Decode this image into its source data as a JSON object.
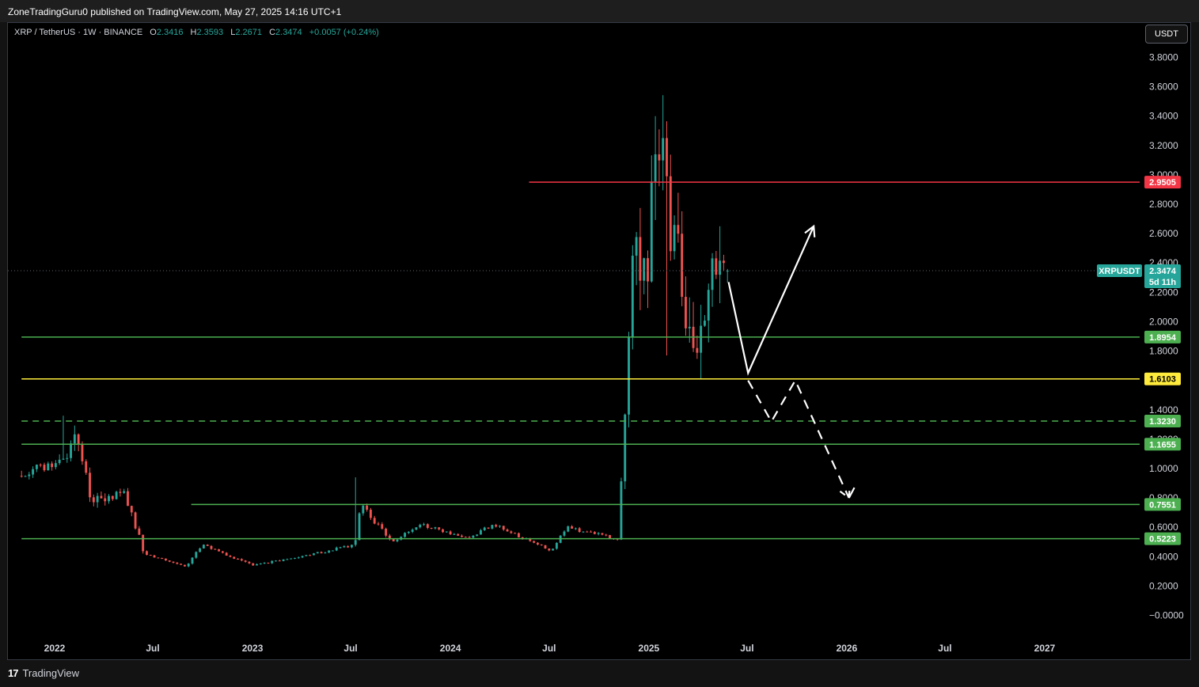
{
  "header": {
    "published": "ZoneTradingGuru0 published on TradingView.com, May 27, 2025 14:16 UTC+1"
  },
  "legend": {
    "symbol": "XRP / TetherUS · 1W · BINANCE",
    "open_label": "O",
    "open": "2.3416",
    "high_label": "H",
    "high": "2.3593",
    "low_label": "L",
    "low": "2.2671",
    "close_label": "C",
    "close": "2.3474",
    "change": "+0.0057 (+0.24%)"
  },
  "currency_button": "USDT",
  "footer": {
    "brand": "TradingView",
    "brand_icon": "tradingview-logo-icon"
  },
  "colors": {
    "up": "#26a69a",
    "down": "#ef5350",
    "support": "#4caf50",
    "resistance": "#f23645",
    "pivot": "#ffeb3b",
    "arrow": "#ffffff"
  },
  "chart_data": {
    "type": "candlestick",
    "symbol": "XRPUSDT",
    "interval": "1W",
    "ylim": [
      -0.1,
      3.95
    ],
    "y_ticks": [
      "3.8000",
      "3.6000",
      "3.4000",
      "3.2000",
      "3.0000",
      "2.8000",
      "2.6000",
      "2.4000",
      "2.2000",
      "2.0000",
      "1.8000",
      "1.6000",
      "1.4000",
      "1.2000",
      "1.0000",
      "0.8000",
      "0.6000",
      "0.4000",
      "0.2000",
      "−0.0000"
    ],
    "x_ticks": [
      "2022",
      "Jul",
      "2023",
      "Jul",
      "2024",
      "Jul",
      "2025",
      "Jul",
      "2026",
      "Jul",
      "2027"
    ],
    "x_tick_dates": [
      "2022-01-01",
      "2022-07-01",
      "2023-01-01",
      "2023-07-01",
      "2024-01-01",
      "2024-07-01",
      "2025-01-01",
      "2025-07-01",
      "2026-01-01",
      "2026-07-01",
      "2027-01-01"
    ],
    "price_segments": [
      {
        "from": "2021-11-01",
        "to": "2022-01-15",
        "start": 0.95,
        "end": 1.05,
        "vol": 0.05
      },
      {
        "from": "2022-01-15",
        "to": "2022-02-10",
        "start": 1.05,
        "end": 1.3,
        "vol": 0.06
      },
      {
        "from": "2022-02-10",
        "to": "2022-03-10",
        "start": 1.3,
        "end": 0.8,
        "vol": 0.06
      },
      {
        "from": "2022-03-10",
        "to": "2022-04-10",
        "start": 0.8,
        "end": 0.78,
        "vol": 0.06
      },
      {
        "from": "2022-04-10",
        "to": "2022-05-10",
        "start": 0.78,
        "end": 0.85,
        "vol": 0.05
      },
      {
        "from": "2022-05-10",
        "to": "2022-06-15",
        "start": 0.85,
        "end": 0.42,
        "vol": 0.05
      },
      {
        "from": "2022-06-15",
        "to": "2022-09-01",
        "start": 0.42,
        "end": 0.33,
        "vol": 0.02
      },
      {
        "from": "2022-09-01",
        "to": "2022-10-01",
        "start": 0.33,
        "end": 0.48,
        "vol": 0.03
      },
      {
        "from": "2022-10-01",
        "to": "2023-01-01",
        "start": 0.48,
        "end": 0.34,
        "vol": 0.02
      },
      {
        "from": "2023-01-01",
        "to": "2023-04-01",
        "start": 0.34,
        "end": 0.4,
        "vol": 0.02
      },
      {
        "from": "2023-04-01",
        "to": "2023-07-08",
        "start": 0.4,
        "end": 0.48,
        "vol": 0.02
      },
      {
        "from": "2023-07-08",
        "to": "2023-07-20",
        "start": 0.48,
        "end": 0.75,
        "vol": 0.03
      },
      {
        "from": "2023-07-20",
        "to": "2023-09-15",
        "start": 0.75,
        "end": 0.5,
        "vol": 0.03
      },
      {
        "from": "2023-09-15",
        "to": "2023-11-10",
        "start": 0.5,
        "end": 0.62,
        "vol": 0.02
      },
      {
        "from": "2023-11-10",
        "to": "2024-02-01",
        "start": 0.62,
        "end": 0.52,
        "vol": 0.02
      },
      {
        "from": "2024-02-01",
        "to": "2024-03-20",
        "start": 0.52,
        "end": 0.62,
        "vol": 0.02
      },
      {
        "from": "2024-03-20",
        "to": "2024-07-05",
        "start": 0.62,
        "end": 0.44,
        "vol": 0.02
      },
      {
        "from": "2024-07-05",
        "to": "2024-08-01",
        "start": 0.44,
        "end": 0.6,
        "vol": 0.02
      },
      {
        "from": "2024-08-01",
        "to": "2024-11-05",
        "start": 0.6,
        "end": 0.52,
        "vol": 0.02
      },
      {
        "from": "2024-11-05",
        "to": "2024-12-02",
        "start": 0.52,
        "end": 2.4,
        "vol": 0.06
      },
      {
        "from": "2024-12-02",
        "to": "2024-12-25",
        "start": 2.4,
        "end": 2.2,
        "vol": 0.12
      },
      {
        "from": "2024-12-25",
        "to": "2025-01-18",
        "start": 2.2,
        "end": 3.1,
        "vol": 0.12
      },
      {
        "from": "2025-01-18",
        "to": "2025-03-01",
        "start": 3.1,
        "end": 2.2,
        "vol": 0.14
      },
      {
        "from": "2025-03-01",
        "to": "2025-04-08",
        "start": 2.2,
        "end": 1.95,
        "vol": 0.12
      },
      {
        "from": "2025-04-08",
        "to": "2025-05-12",
        "start": 1.95,
        "end": 2.45,
        "vol": 0.1
      },
      {
        "from": "2025-05-12",
        "to": "2025-05-27",
        "start": 2.45,
        "end": 2.35,
        "vol": 0.05
      }
    ],
    "spikes": [
      {
        "date": "2022-01-20",
        "high": 1.36
      },
      {
        "date": "2023-07-13",
        "high": 0.94
      },
      {
        "date": "2025-01-16",
        "high": 3.4
      },
      {
        "date": "2025-02-03",
        "low": 1.77
      },
      {
        "date": "2025-04-07",
        "low": 1.61
      },
      {
        "date": "2025-05-12",
        "high": 2.65
      }
    ],
    "current_price": "2.3474",
    "current_price_value": 2.3474,
    "current_tag_symbol": "XRPUSDT",
    "countdown": "5d 11h",
    "levels": [
      {
        "label": "2.9505",
        "value": 2.9505,
        "color": "resistance",
        "style": "solid",
        "start": "2024-05-25"
      },
      {
        "label": "1.8954",
        "value": 1.8954,
        "color": "support",
        "style": "solid",
        "start": "2021-11-01"
      },
      {
        "label": "1.6103",
        "value": 1.6103,
        "color": "pivot",
        "style": "solid",
        "start": "2021-11-01"
      },
      {
        "label": "1.3230",
        "value": 1.323,
        "color": "support",
        "style": "dashed",
        "start": "2021-11-01"
      },
      {
        "label": "1.1655",
        "value": 1.1655,
        "color": "support",
        "style": "solid",
        "start": "2021-11-01"
      },
      {
        "label": "0.7551",
        "value": 0.7551,
        "color": "support",
        "style": "solid",
        "start": "2022-09-10"
      },
      {
        "label": "0.5223",
        "value": 0.5223,
        "color": "support",
        "style": "solid",
        "start": "2021-11-01"
      }
    ],
    "projection_solid": [
      {
        "date": "2025-05-28",
        "value": 2.27
      },
      {
        "date": "2025-07-03",
        "value": 1.65
      },
      {
        "date": "2025-11-01",
        "value": 2.65
      }
    ],
    "projection_dashed": [
      {
        "date": "2025-07-03",
        "value": 1.6
      },
      {
        "date": "2025-08-15",
        "value": 1.32
      },
      {
        "date": "2025-09-28",
        "value": 1.6
      },
      {
        "date": "2026-01-05",
        "value": 0.8
      },
      {
        "date": "2026-01-15",
        "value": 0.87
      }
    ]
  }
}
